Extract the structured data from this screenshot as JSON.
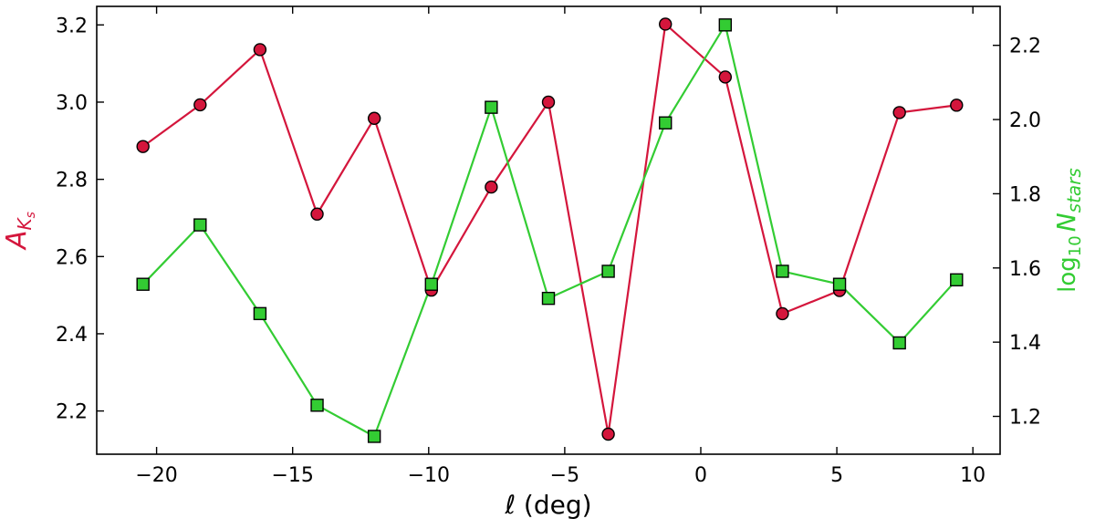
{
  "chart_data": {
    "type": "line",
    "x": [
      -20.5,
      -18.4,
      -16.2,
      -14.1,
      -12.0,
      -9.9,
      -7.7,
      -5.6,
      -3.4,
      -1.3,
      0.9,
      3.0,
      5.1,
      7.3,
      9.4
    ],
    "series": [
      {
        "axis": "left",
        "marker": "circle",
        "color": "#d4163c",
        "values": [
          2.885,
          2.993,
          3.136,
          2.71,
          2.958,
          2.513,
          2.78,
          3.0,
          2.14,
          3.202,
          3.065,
          2.452,
          2.512,
          2.973,
          2.992
        ]
      },
      {
        "axis": "right",
        "marker": "square",
        "color": "#33cc33",
        "values": [
          1.556,
          1.716,
          1.477,
          1.23,
          1.146,
          1.556,
          2.033,
          1.518,
          1.591,
          1.991,
          2.255,
          1.591,
          1.556,
          1.398,
          1.568
        ]
      }
    ],
    "xlabel": "ℓ (deg)",
    "ylabel_left": {
      "base": "A",
      "sub": "K",
      "subsub": "s",
      "color": "#d4163c"
    },
    "ylabel_right": {
      "pre": "log",
      "sub": "10",
      "main": "N",
      "main_sub": "stars",
      "color": "#33cc33"
    },
    "xlim": [
      -22.2,
      11.0
    ],
    "ylim_left": [
      2.088,
      3.248
    ],
    "ylim_right": [
      1.098,
      2.305
    ],
    "xticks": [
      -20,
      -15,
      -10,
      -5,
      0,
      5,
      10
    ],
    "yticks_left": [
      2.2,
      2.4,
      2.6,
      2.8,
      3.0,
      3.2
    ],
    "yticks_right": [
      1.2,
      1.4,
      1.6,
      1.8,
      2.0,
      2.2
    ],
    "grid": false,
    "legend": "none",
    "tick_direction": "in"
  }
}
